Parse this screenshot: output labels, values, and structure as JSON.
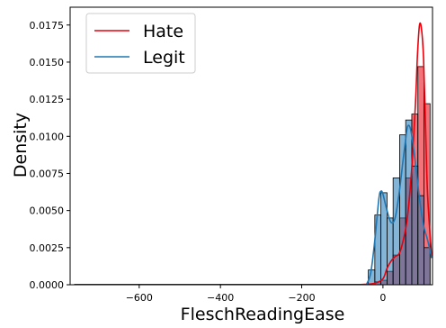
{
  "chart_data": {
    "type": "bar",
    "title": "",
    "xlabel": "FleschReadingEase",
    "ylabel": "Density",
    "xlim": [
      -770,
      122
    ],
    "ylim": [
      0,
      0.0187
    ],
    "xticks": [
      -600,
      -400,
      -200,
      0
    ],
    "xtick_labels": [
      "−600",
      "−400",
      "−200",
      "0"
    ],
    "yticks": [
      0,
      0.0025,
      0.005,
      0.0075,
      0.01,
      0.0125,
      0.015,
      0.0175
    ],
    "ytick_labels": [
      "0.0000",
      "0.0025",
      "0.0050",
      "0.0075",
      "0.0100",
      "0.0125",
      "0.0150",
      "0.0175"
    ],
    "grid": false,
    "legend_position": "upper-left",
    "series": [
      {
        "name": "Hate",
        "color": "#e8000b",
        "bin_edges": [
          -36,
          -20,
          -5,
          10,
          25,
          41,
          56,
          71,
          86,
          101,
          116
        ],
        "density": [
          0.0,
          0.0002,
          0.0003,
          0.0009,
          0.002,
          0.0045,
          0.0072,
          0.0115,
          0.0147,
          0.0122
        ],
        "kde": {
          "x": [
            -760,
            -700,
            -600,
            -500,
            -400,
            -300,
            -200,
            -100,
            -50,
            -20,
            0,
            10,
            20,
            30,
            40,
            50,
            60,
            70,
            80,
            85,
            90,
            95,
            100,
            105,
            110,
            120
          ],
          "y": [
            1e-05,
            1e-05,
            1e-05,
            1e-05,
            1e-05,
            1e-05,
            1e-05,
            1e-05,
            2e-05,
            0.0001,
            0.0004,
            0.0011,
            0.0016,
            0.0019,
            0.0021,
            0.003,
            0.0045,
            0.0075,
            0.0122,
            0.0155,
            0.0175,
            0.0172,
            0.0152,
            0.0105,
            0.006,
            0.0018
          ]
        }
      },
      {
        "name": "Legit",
        "color": "#1f77b4",
        "bin_edges": [
          -36,
          -20,
          -5,
          10,
          25,
          41,
          56,
          71,
          86,
          101,
          116
        ],
        "density": [
          0.001,
          0.0047,
          0.0062,
          0.0045,
          0.0072,
          0.0101,
          0.0111,
          0.008,
          0.006,
          0.0025
        ],
        "kde": {
          "x": [
            -40,
            -30,
            -20,
            -10,
            -5,
            0,
            10,
            20,
            30,
            40,
            50,
            55,
            60,
            65,
            70,
            80,
            90,
            100,
            110,
            120
          ],
          "y": [
            5e-05,
            0.0008,
            0.003,
            0.0058,
            0.0063,
            0.0061,
            0.005,
            0.0042,
            0.0045,
            0.0062,
            0.0085,
            0.0096,
            0.0106,
            0.0107,
            0.0102,
            0.0082,
            0.0058,
            0.004,
            0.003,
            0.0018
          ]
        }
      }
    ]
  }
}
